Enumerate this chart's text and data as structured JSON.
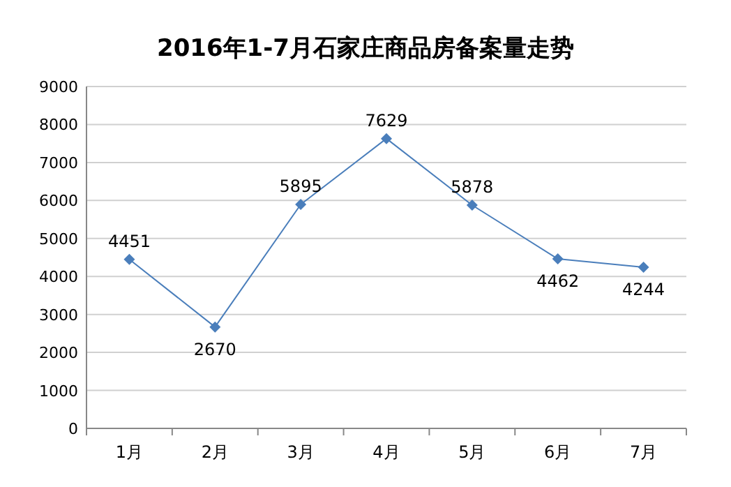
{
  "chart_data": {
    "type": "line",
    "title": "2016年1-7月石家庄商品房备案量走势",
    "categories": [
      "1月",
      "2月",
      "3月",
      "4月",
      "5月",
      "6月",
      "7月"
    ],
    "series": [
      {
        "color": "#4a7ebb",
        "values": [
          4451,
          2670,
          5895,
          7629,
          5878,
          4462,
          4244
        ]
      }
    ],
    "ylim": [
      0,
      9000
    ],
    "yticks": [
      0,
      1000,
      2000,
      3000,
      4000,
      5000,
      6000,
      7000,
      8000,
      9000
    ],
    "grid": "y",
    "marker": "diamond",
    "line_style": "solid",
    "data_labels": true
  }
}
